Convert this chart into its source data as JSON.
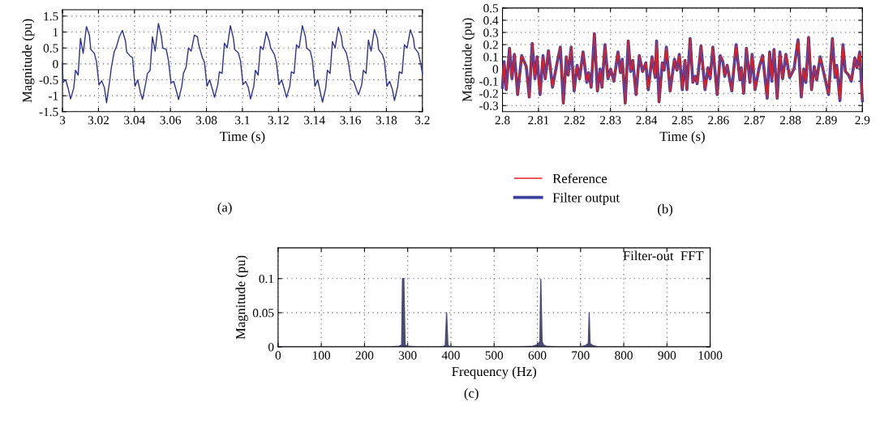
{
  "chart_data": [
    {
      "type": "line",
      "xlabel": "Time (s)",
      "ylabel": "Magnitude (pu)",
      "annotations": [
        "(a)"
      ],
      "xlim": [
        3,
        3.2
      ],
      "ylim": [
        -1.5,
        1.7
      ],
      "xticks": [
        3,
        3.02,
        3.04,
        3.06,
        3.08,
        3.1,
        3.12,
        3.14,
        3.16,
        3.18,
        3.2
      ],
      "yticks": [
        -1.5,
        -1,
        -0.5,
        0,
        0.5,
        1,
        1.5
      ],
      "grid": true,
      "legend": false,
      "series": [
        {
          "color": "#2e3192",
          "x": [
            3,
            3.0003,
            3.0018,
            3.0033,
            3.0045,
            3.0063,
            3.0072,
            3.0087,
            3.01,
            3.0115,
            3.0133,
            3.015,
            3.0157,
            3.0177,
            3.0189,
            3.0203,
            3.0218,
            3.0233,
            3.0245,
            3.0263,
            3.0272,
            3.0287,
            3.03,
            3.0315,
            3.0333,
            3.035,
            3.0357,
            3.0377,
            3.0389,
            3.0403,
            3.0418,
            3.0433,
            3.0445,
            3.0463,
            3.0472,
            3.0487,
            3.05,
            3.0515,
            3.0533,
            3.055,
            3.0557,
            3.0577,
            3.0589,
            3.0603,
            3.0618,
            3.0633,
            3.0645,
            3.0663,
            3.0672,
            3.0687,
            3.07,
            3.0715,
            3.0733,
            3.075,
            3.0757,
            3.0777,
            3.0789,
            3.0803,
            3.0818,
            3.0833,
            3.0845,
            3.0863,
            3.0872,
            3.0887,
            3.09,
            3.0915,
            3.0933,
            3.095,
            3.0957,
            3.0977,
            3.0989,
            3.1003,
            3.1018,
            3.1033,
            3.1045,
            3.1063,
            3.1072,
            3.1087,
            3.11,
            3.1115,
            3.1133,
            3.115,
            3.1157,
            3.1177,
            3.1189,
            3.1203,
            3.1218,
            3.1233,
            3.1245,
            3.1263,
            3.1272,
            3.1287,
            3.13,
            3.1315,
            3.1333,
            3.135,
            3.1357,
            3.1377,
            3.1389,
            3.1403,
            3.1418,
            3.1433,
            3.1445,
            3.1463,
            3.1472,
            3.1487,
            3.15,
            3.1515,
            3.1533,
            3.155,
            3.1557,
            3.1577,
            3.1589,
            3.1603,
            3.1618,
            3.1633,
            3.1645,
            3.1663,
            3.1672,
            3.1687,
            3.17,
            3.1715,
            3.1733,
            3.175,
            3.1757,
            3.1777,
            3.1789,
            3.1803,
            3.1818,
            3.1833,
            3.1845,
            3.1863,
            3.1872,
            3.1887,
            3.19,
            3.1915,
            3.1933,
            3.195,
            3.1957,
            3.1977,
            3.1989,
            3.2
          ],
          "values": [
            0.03,
            -0.58,
            -0.5,
            -0.8,
            -1.1,
            -0.75,
            -0.2,
            -0.35,
            0.8,
            0.33,
            1.17,
            0.89,
            0.46,
            0.33,
            0.07,
            -0.66,
            -0.53,
            -0.75,
            -1.22,
            -0.5,
            -0.1,
            0.37,
            0.54,
            0.84,
            1.05,
            0.72,
            0.37,
            0.24,
            0.2,
            -0.7,
            -0.5,
            -0.9,
            -1.11,
            -0.6,
            -0.3,
            -0.2,
            0.85,
            0.4,
            1.27,
            0.85,
            0.5,
            0.45,
            0.1,
            -0.6,
            -0.55,
            -0.85,
            -1.12,
            -0.7,
            -0.3,
            -0.1,
            0.5,
            0.4,
            0.9,
            0.85,
            0.6,
            0.2,
            0.05,
            -0.7,
            -0.5,
            -0.8,
            -1.05,
            -0.65,
            -0.25,
            -0.3,
            0.65,
            0.5,
            1.2,
            0.8,
            0.45,
            0.35,
            0.1,
            -0.65,
            -0.55,
            -0.75,
            -1.1,
            -0.7,
            -0.2,
            -0.35,
            0.55,
            0.45,
            1.0,
            0.7,
            0.5,
            0.3,
            0.05,
            -0.65,
            -0.5,
            -0.8,
            -1.05,
            -0.7,
            -0.25,
            -0.3,
            0.6,
            0.5,
            1.2,
            0.85,
            0.5,
            0.4,
            0.1,
            -0.7,
            -0.5,
            -0.9,
            -1.2,
            -0.75,
            -0.2,
            -0.3,
            0.7,
            0.5,
            1.15,
            0.85,
            0.55,
            0.35,
            0.05,
            -0.5,
            -0.55,
            -0.8,
            -0.97,
            -0.65,
            -0.2,
            -0.3,
            0.75,
            0.4,
            1.08,
            0.8,
            0.45,
            0.3,
            0.1,
            -0.7,
            -0.55,
            -0.8,
            -1.15,
            -0.7,
            -0.25,
            -0.3,
            0.6,
            0.5,
            1.07,
            0.8,
            0.5,
            0.35,
            0.05,
            -0.3
          ]
        }
      ]
    },
    {
      "type": "line",
      "xlabel": "Time (s)",
      "ylabel": "Magnitude (pu)",
      "annotations": [
        "(b)"
      ],
      "xlim": [
        2.8,
        2.9
      ],
      "ylim": [
        -0.35,
        0.5
      ],
      "xticks": [
        2.8,
        2.81,
        2.82,
        2.83,
        2.84,
        2.85,
        2.86,
        2.87,
        2.88,
        2.89,
        2.9
      ],
      "yticks": [
        -0.3,
        -0.2,
        -0.1,
        0,
        0.1,
        0.2,
        0.3,
        0.4,
        0.5
      ],
      "grid": true,
      "legend": "bottom",
      "x": [
        2.8,
        2.80045,
        2.80105,
        2.80195,
        2.80263,
        2.80331,
        2.80421,
        2.80533,
        2.80661,
        2.80744,
        2.80826,
        2.80902,
        2.80962,
        2.81044,
        2.81127,
        2.81187,
        2.81277,
        2.8139,
        2.81503,
        2.81608,
        2.8169,
        2.81773,
        2.81826,
        2.81908,
        2.81991,
        2.82074,
        2.82141,
        2.82239,
        2.82344,
        2.82397,
        2.82464,
        2.82554,
        2.82637,
        2.82712,
        2.82765,
        2.82847,
        2.8293,
        2.83005,
        2.83095,
        2.83208,
        2.83276,
        2.83328,
        2.83411,
        2.83494,
        2.83561,
        2.83621,
        2.83711,
        2.83802,
        2.83892,
        2.83982,
        2.8405,
        2.84155,
        2.84245,
        2.84282,
        2.8435,
        2.8444,
        2.84493,
        2.84553,
        2.84658,
        2.84778,
        2.84846,
        2.84914,
        2.84996,
        2.85071,
        2.85124,
        2.85214,
        2.85289,
        2.85357,
        2.85409,
        2.85515,
        2.85627,
        2.8571,
        2.8577,
        2.85845,
        2.85965,
        2.86048,
        2.86123,
        2.86176,
        2.86243,
        2.86371,
        2.86491,
        2.86596,
        2.86634,
        2.86702,
        2.86777,
        2.86874,
        2.86935,
        2.87017,
        2.87137,
        2.87227,
        2.87355,
        2.87423,
        2.87483,
        2.87543,
        2.87633,
        2.87708,
        2.87783,
        2.87874,
        2.87979,
        2.88099,
        2.88212,
        2.88302,
        2.88369,
        2.8843,
        2.88505,
        2.88587,
        2.88662,
        2.8873,
        2.88828,
        2.8894,
        2.89061,
        2.89166,
        2.89241,
        2.89286,
        2.89376,
        2.89459,
        2.89527,
        2.89617,
        2.89692,
        2.89789,
        2.89849,
        2.89925,
        2.9
      ],
      "series": [
        {
          "name": "Filter output",
          "color": "#3b3f9c",
          "values": [
            -0.15,
            0.06,
            -0.17,
            0.17,
            -0.08,
            0.12,
            -0.21,
            0.11,
            0.02,
            -0.23,
            0.21,
            -0.08,
            0.1,
            -0.21,
            0.11,
            -0.08,
            0.15,
            -0.15,
            0.03,
            0.18,
            -0.28,
            0.1,
            -0.05,
            0.18,
            -0.18,
            0.03,
            -0.08,
            0.14,
            -0.11,
            -0.03,
            -0.15,
            0.29,
            -0.18,
            0,
            -0.15,
            0.2,
            -0.08,
            0,
            -0.1,
            0.14,
            -0.03,
            0.08,
            -0.28,
            0.23,
            -0.02,
            0.07,
            -0.21,
            0.11,
            -0.02,
            0.05,
            -0.17,
            0.1,
            -0.07,
            0.23,
            -0.27,
            0.05,
            -0.01,
            0.18,
            -0.18,
            0.08,
            -0.01,
            0.12,
            -0.17,
            0.07,
            -0.17,
            0.25,
            -0.11,
            -0.06,
            -0.12,
            0.19,
            -0.17,
            0.01,
            -0.08,
            0.18,
            -0.21,
            0.11,
            0.06,
            -0.06,
            0.03,
            -0.18,
            0.2,
            -0.09,
            0.01,
            -0.2,
            0.17,
            -0.11,
            0.12,
            -0.17,
            0.02,
            0.11,
            -0.24,
            0.14,
            -0.1,
            0.16,
            -0.24,
            0.14,
            -0.08,
            0.12,
            -0.07,
            0,
            0.24,
            -0.23,
            0,
            -0.11,
            0.26,
            -0.17,
            0.02,
            -0.09,
            0.1,
            -0.05,
            -0.21,
            0.25,
            -0.07,
            0.03,
            -0.26,
            0.2,
            -0.02,
            -0.05,
            -0.1,
            0.09,
            0.01,
            0.14,
            -0.26
          ]
        },
        {
          "name": "Reference",
          "color": "#e8202a",
          "values": [
            -0.15,
            0.06,
            -0.17,
            0.17,
            -0.08,
            0.12,
            -0.21,
            0.11,
            0.02,
            -0.23,
            0.21,
            -0.08,
            0.1,
            -0.21,
            0.11,
            -0.08,
            0.15,
            -0.15,
            0.03,
            0.18,
            -0.28,
            0.1,
            -0.05,
            0.18,
            -0.18,
            0.03,
            -0.08,
            0.14,
            -0.11,
            -0.03,
            -0.15,
            0.29,
            -0.18,
            0,
            -0.15,
            0.2,
            -0.08,
            0,
            -0.1,
            0.14,
            -0.03,
            0.08,
            -0.28,
            0.23,
            -0.02,
            0.07,
            -0.21,
            0.11,
            -0.02,
            0.05,
            -0.17,
            0.1,
            -0.07,
            0.23,
            -0.27,
            0.05,
            -0.01,
            0.18,
            -0.18,
            0.08,
            -0.01,
            0.12,
            -0.17,
            0.07,
            -0.17,
            0.25,
            -0.11,
            -0.06,
            -0.12,
            0.19,
            -0.17,
            0.01,
            -0.08,
            0.18,
            -0.21,
            0.11,
            0.06,
            -0.06,
            0.03,
            -0.18,
            0.2,
            -0.09,
            0.01,
            -0.2,
            0.17,
            -0.11,
            0.12,
            -0.17,
            0.02,
            0.11,
            -0.24,
            0.14,
            -0.1,
            0.16,
            -0.24,
            0.14,
            -0.08,
            0.12,
            -0.07,
            0,
            0.24,
            -0.23,
            0,
            -0.11,
            0.26,
            -0.17,
            0.02,
            -0.09,
            0.1,
            -0.05,
            -0.21,
            0.25,
            -0.07,
            0.03,
            -0.26,
            0.2,
            -0.02,
            -0.05,
            -0.1,
            0.09,
            0.01,
            0.14,
            -0.26
          ]
        }
      ]
    },
    {
      "type": "area",
      "xlabel": "Frequency (Hz)",
      "ylabel": "Magnitude (pu)",
      "annotations": [
        "Filter-out  FFT",
        "(c)"
      ],
      "xlim": [
        0,
        1000
      ],
      "ylim": [
        0,
        0.145
      ],
      "xticks": [
        0,
        100,
        200,
        300,
        400,
        500,
        600,
        700,
        800,
        900,
        1000
      ],
      "yticks": [
        0,
        0.05,
        0.1
      ],
      "grid": true,
      "legend": false,
      "series": [
        {
          "color": "#4a4a78",
          "x": [
            0,
            260,
            280,
            286,
            288,
            291,
            294,
            300,
            320,
            375,
            384,
            387,
            390,
            393,
            396,
            405,
            560,
            590,
            600,
            606,
            608,
            611,
            614,
            620,
            640,
            700,
            712,
            718,
            720,
            722,
            728,
            740,
            1000
          ],
          "values": [
            0,
            0,
            0.001,
            0.003,
            0.1,
            0.1,
            0.003,
            0.001,
            0,
            0,
            0.001,
            0.002,
            0.05,
            0.002,
            0.001,
            0,
            0,
            0.001,
            0.003,
            0.008,
            0.099,
            0.008,
            0.003,
            0.001,
            0,
            0,
            0.002,
            0.005,
            0.05,
            0.005,
            0.002,
            0,
            0
          ]
        }
      ]
    }
  ]
}
